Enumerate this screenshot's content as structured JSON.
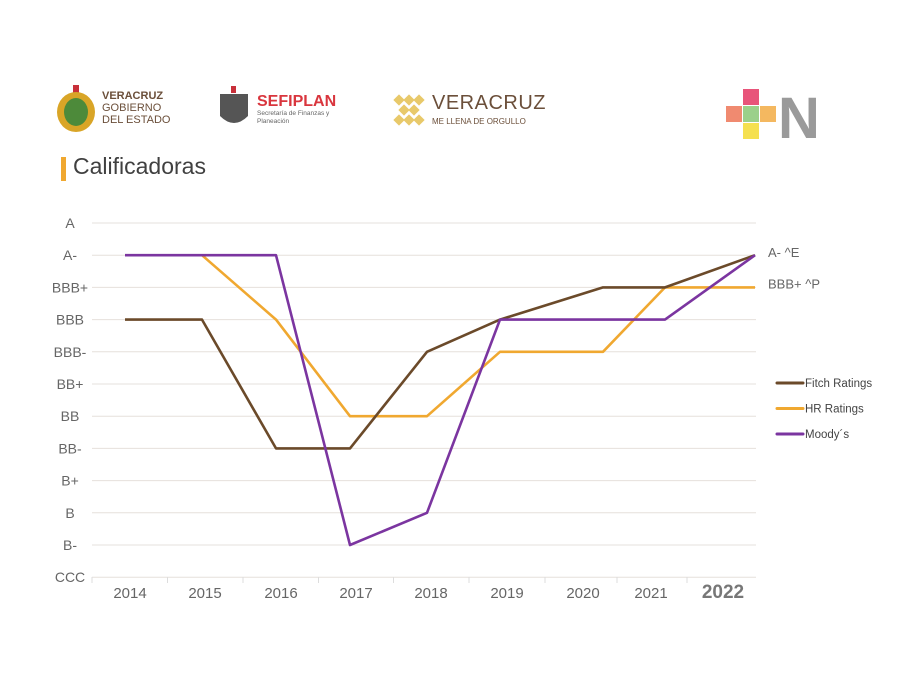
{
  "logos": {
    "gobierno": {
      "line1": "VERACRUZ",
      "line2": "GOBIERNO",
      "line3": "DEL ESTADO"
    },
    "sefiplan": {
      "name": "SEFIPLAN",
      "subtitle": "Secretaría de Finanzas y Planeación"
    },
    "veracruz": {
      "name": "VERACRUZ",
      "tagline": "ME LLENA DE ORGULLO"
    },
    "nmark": "N"
  },
  "title": "Calificadoras",
  "chart_data": {
    "type": "line",
    "categories": [
      "2014",
      "2015",
      "2016",
      "2017",
      "2018",
      "2019",
      "2020",
      "2021",
      "2022"
    ],
    "y_categories": [
      "CCC",
      "B-",
      "B",
      "B+",
      "BB-",
      "BB",
      "BB+",
      "BBB-",
      "BBB",
      "BBB+",
      "A-",
      "A"
    ],
    "grid": true,
    "legend": "right",
    "series": [
      {
        "name": "Fitch Ratings",
        "color": "#6b4a2a",
        "values": [
          "BBB",
          "BBB",
          "BB-",
          "BB-",
          "BBB-",
          "BBB",
          "BBB+",
          "BBB+",
          "A-"
        ]
      },
      {
        "name": "HR Ratings",
        "color": "#f0a830",
        "values": [
          null,
          "A-",
          "BBB",
          "BB",
          "BB",
          "BBB-",
          "BBB-",
          "BBB+",
          "BBB+"
        ]
      },
      {
        "name": "Moody´s",
        "color": "#7b35a0",
        "values": [
          "A-",
          "A-",
          "A-",
          "B-",
          "B",
          "BBB",
          "BBB",
          "BBB",
          "A-"
        ]
      }
    ],
    "annotations": [
      "A- ^E",
      "BBB+ ^P"
    ]
  }
}
